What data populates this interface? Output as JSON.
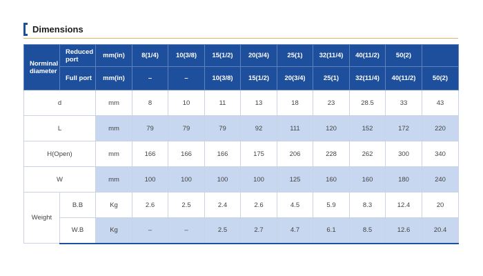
{
  "title": "Dimensions",
  "header": {
    "nominal_label": "Norminal diameter",
    "reduced_label": "Reduced port",
    "full_label": "Full port",
    "unit": "mm(in)",
    "reduced_sizes": [
      "8(1/4)",
      "10(3/8)",
      "15(1/2)",
      "20(3/4)",
      "25(1)",
      "32(11/4)",
      "40(11/2)",
      "50(2)",
      ""
    ],
    "full_sizes": [
      "–",
      "–",
      "10(3/8)",
      "15(1/2)",
      "20(3/4)",
      "25(1)",
      "32(11/4)",
      "40(11/2)",
      "50(2)"
    ]
  },
  "rows": {
    "d": {
      "label": "d",
      "unit": "mm",
      "values": [
        "8",
        "10",
        "11",
        "13",
        "18",
        "23",
        "28.5",
        "33",
        "43"
      ]
    },
    "L": {
      "label": "L",
      "unit": "mm",
      "values": [
        "79",
        "79",
        "79",
        "92",
        "111",
        "120",
        "152",
        "172",
        "220"
      ]
    },
    "H": {
      "label": "H(Open)",
      "unit": "mm",
      "values": [
        "166",
        "166",
        "166",
        "175",
        "206",
        "228",
        "262",
        "300",
        "340"
      ]
    },
    "W": {
      "label": "W",
      "unit": "mm",
      "values": [
        "100",
        "100",
        "100",
        "100",
        "125",
        "160",
        "160",
        "180",
        "240"
      ]
    },
    "weight_label": "Weight",
    "BB": {
      "label": "B.B",
      "unit": "Kg",
      "values": [
        "2.6",
        "2.5",
        "2.4",
        "2.6",
        "4.5",
        "5.9",
        "8.3",
        "12.4",
        "20"
      ]
    },
    "WB": {
      "label": "W.B",
      "unit": "Kg",
      "values": [
        "–",
        "–",
        "2.5",
        "2.7",
        "4.7",
        "6.1",
        "8.5",
        "12.6",
        "20.4"
      ]
    }
  },
  "colors": {
    "header_blue": "#1e4f9c",
    "shade_blue": "#c7d7ef",
    "rule_gold": "#e2b36a"
  }
}
